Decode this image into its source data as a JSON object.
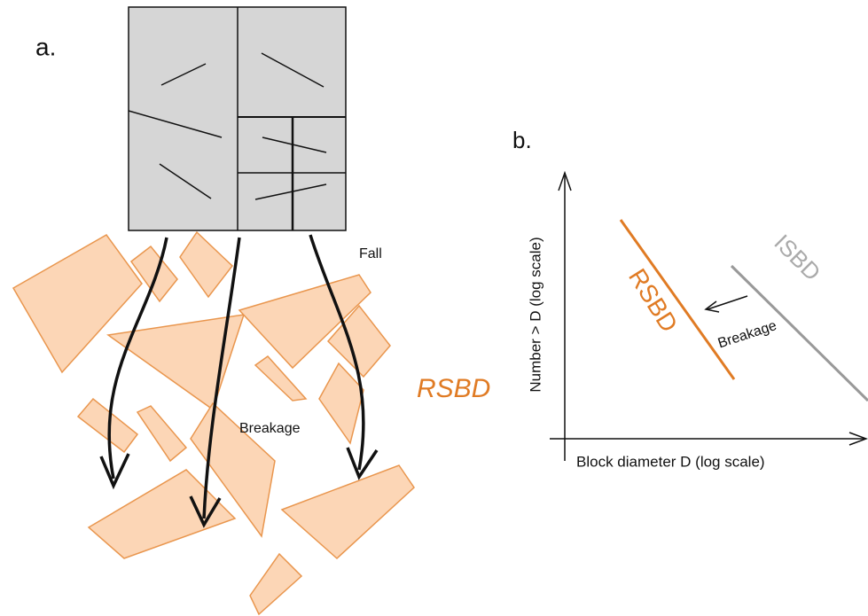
{
  "panel_a": {
    "label": "a.",
    "fall": "Fall",
    "breakage": "Breakage",
    "rsbd": "RSBD"
  },
  "panel_b": {
    "label": "b.",
    "y_axis": "Number > D (log scale)",
    "x_axis": "Block diameter D (log scale)",
    "rsbd": "RSBD",
    "isbd": "ISBD",
    "breakage": "Breakage"
  }
}
